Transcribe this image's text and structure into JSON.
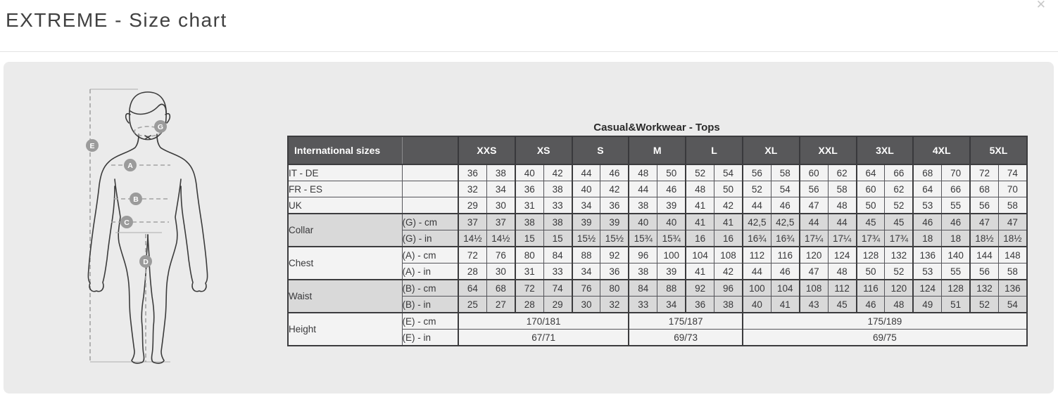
{
  "window": {
    "title": "EXTREME - Size chart",
    "close_icon": "✕"
  },
  "figure": {
    "badges": [
      "E",
      "G",
      "A",
      "B",
      "C",
      "D"
    ]
  },
  "table": {
    "title": "Casual&Workwear - Tops",
    "corner_label": "International sizes",
    "size_groups": [
      "XXS",
      "XS",
      "S",
      "M",
      "L",
      "XL",
      "XXL",
      "3XL",
      "4XL",
      "5XL"
    ],
    "rows": [
      {
        "type": "simple",
        "label": "IT - DE",
        "shade": "light",
        "values": [
          "36",
          "38",
          "40",
          "42",
          "44",
          "46",
          "48",
          "50",
          "52",
          "54",
          "56",
          "58",
          "60",
          "62",
          "64",
          "66",
          "68",
          "70",
          "72",
          "74"
        ]
      },
      {
        "type": "simple",
        "label": "FR - ES",
        "shade": "light",
        "values": [
          "32",
          "34",
          "36",
          "38",
          "40",
          "42",
          "44",
          "46",
          "48",
          "50",
          "52",
          "54",
          "56",
          "58",
          "60",
          "62",
          "64",
          "66",
          "68",
          "70"
        ]
      },
      {
        "type": "simple",
        "label": "UK",
        "shade": "light",
        "values": [
          "29",
          "30",
          "31",
          "33",
          "34",
          "36",
          "38",
          "39",
          "41",
          "42",
          "44",
          "46",
          "47",
          "48",
          "50",
          "52",
          "53",
          "55",
          "56",
          "58"
        ]
      },
      {
        "type": "group",
        "label": "Collar",
        "shade": "gray",
        "subrows": [
          {
            "label": "(G) - cm",
            "values": [
              "37",
              "37",
              "38",
              "38",
              "39",
              "39",
              "40",
              "40",
              "41",
              "41",
              "42,5",
              "42,5",
              "44",
              "44",
              "45",
              "45",
              "46",
              "46",
              "47",
              "47"
            ]
          },
          {
            "label": "(G) - in",
            "values": [
              "14½",
              "14½",
              "15",
              "15",
              "15½",
              "15½",
              "15¾",
              "15¾",
              "16",
              "16",
              "16¾",
              "16¾",
              "17¼",
              "17¼",
              "17¾",
              "17¾",
              "18",
              "18",
              "18½",
              "18½"
            ]
          }
        ]
      },
      {
        "type": "group",
        "label": "Chest",
        "shade": "light",
        "subrows": [
          {
            "label": "(A) - cm",
            "values": [
              "72",
              "76",
              "80",
              "84",
              "88",
              "92",
              "96",
              "100",
              "104",
              "108",
              "112",
              "116",
              "120",
              "124",
              "128",
              "132",
              "136",
              "140",
              "144",
              "148"
            ]
          },
          {
            "label": "(A) - in",
            "values": [
              "28",
              "30",
              "31",
              "33",
              "34",
              "36",
              "38",
              "39",
              "41",
              "42",
              "44",
              "46",
              "47",
              "48",
              "50",
              "52",
              "53",
              "55",
              "56",
              "58"
            ]
          }
        ]
      },
      {
        "type": "group",
        "label": "Waist",
        "shade": "gray",
        "subrows": [
          {
            "label": "(B) - cm",
            "values": [
              "64",
              "68",
              "72",
              "74",
              "76",
              "80",
              "84",
              "88",
              "92",
              "96",
              "100",
              "104",
              "108",
              "112",
              "116",
              "120",
              "124",
              "128",
              "132",
              "136"
            ]
          },
          {
            "label": "(B) - in",
            "values": [
              "25",
              "27",
              "28",
              "29",
              "30",
              "32",
              "33",
              "34",
              "36",
              "38",
              "40",
              "41",
              "43",
              "45",
              "46",
              "48",
              "49",
              "51",
              "52",
              "54"
            ]
          }
        ]
      },
      {
        "type": "group",
        "label": "Height",
        "shade": "light",
        "subrows": [
          {
            "label": "(E) - cm",
            "spans": [
              {
                "cols": 6,
                "value": "170/181"
              },
              {
                "cols": 4,
                "value": "175/187"
              },
              {
                "cols": 10,
                "value": "175/189"
              }
            ]
          },
          {
            "label": "(E) - in",
            "spans": [
              {
                "cols": 6,
                "value": "67/71"
              },
              {
                "cols": 4,
                "value": "69/73"
              },
              {
                "cols": 10,
                "value": "69/75"
              }
            ]
          }
        ]
      }
    ],
    "colors": {
      "header_bg": "#58585a",
      "header_text": "#ffffff",
      "row_light": "#f3f3f3",
      "row_gray": "#d9d9d9",
      "border_dark": "#3c3c3e",
      "panel_bg": "#ebebeb"
    }
  }
}
